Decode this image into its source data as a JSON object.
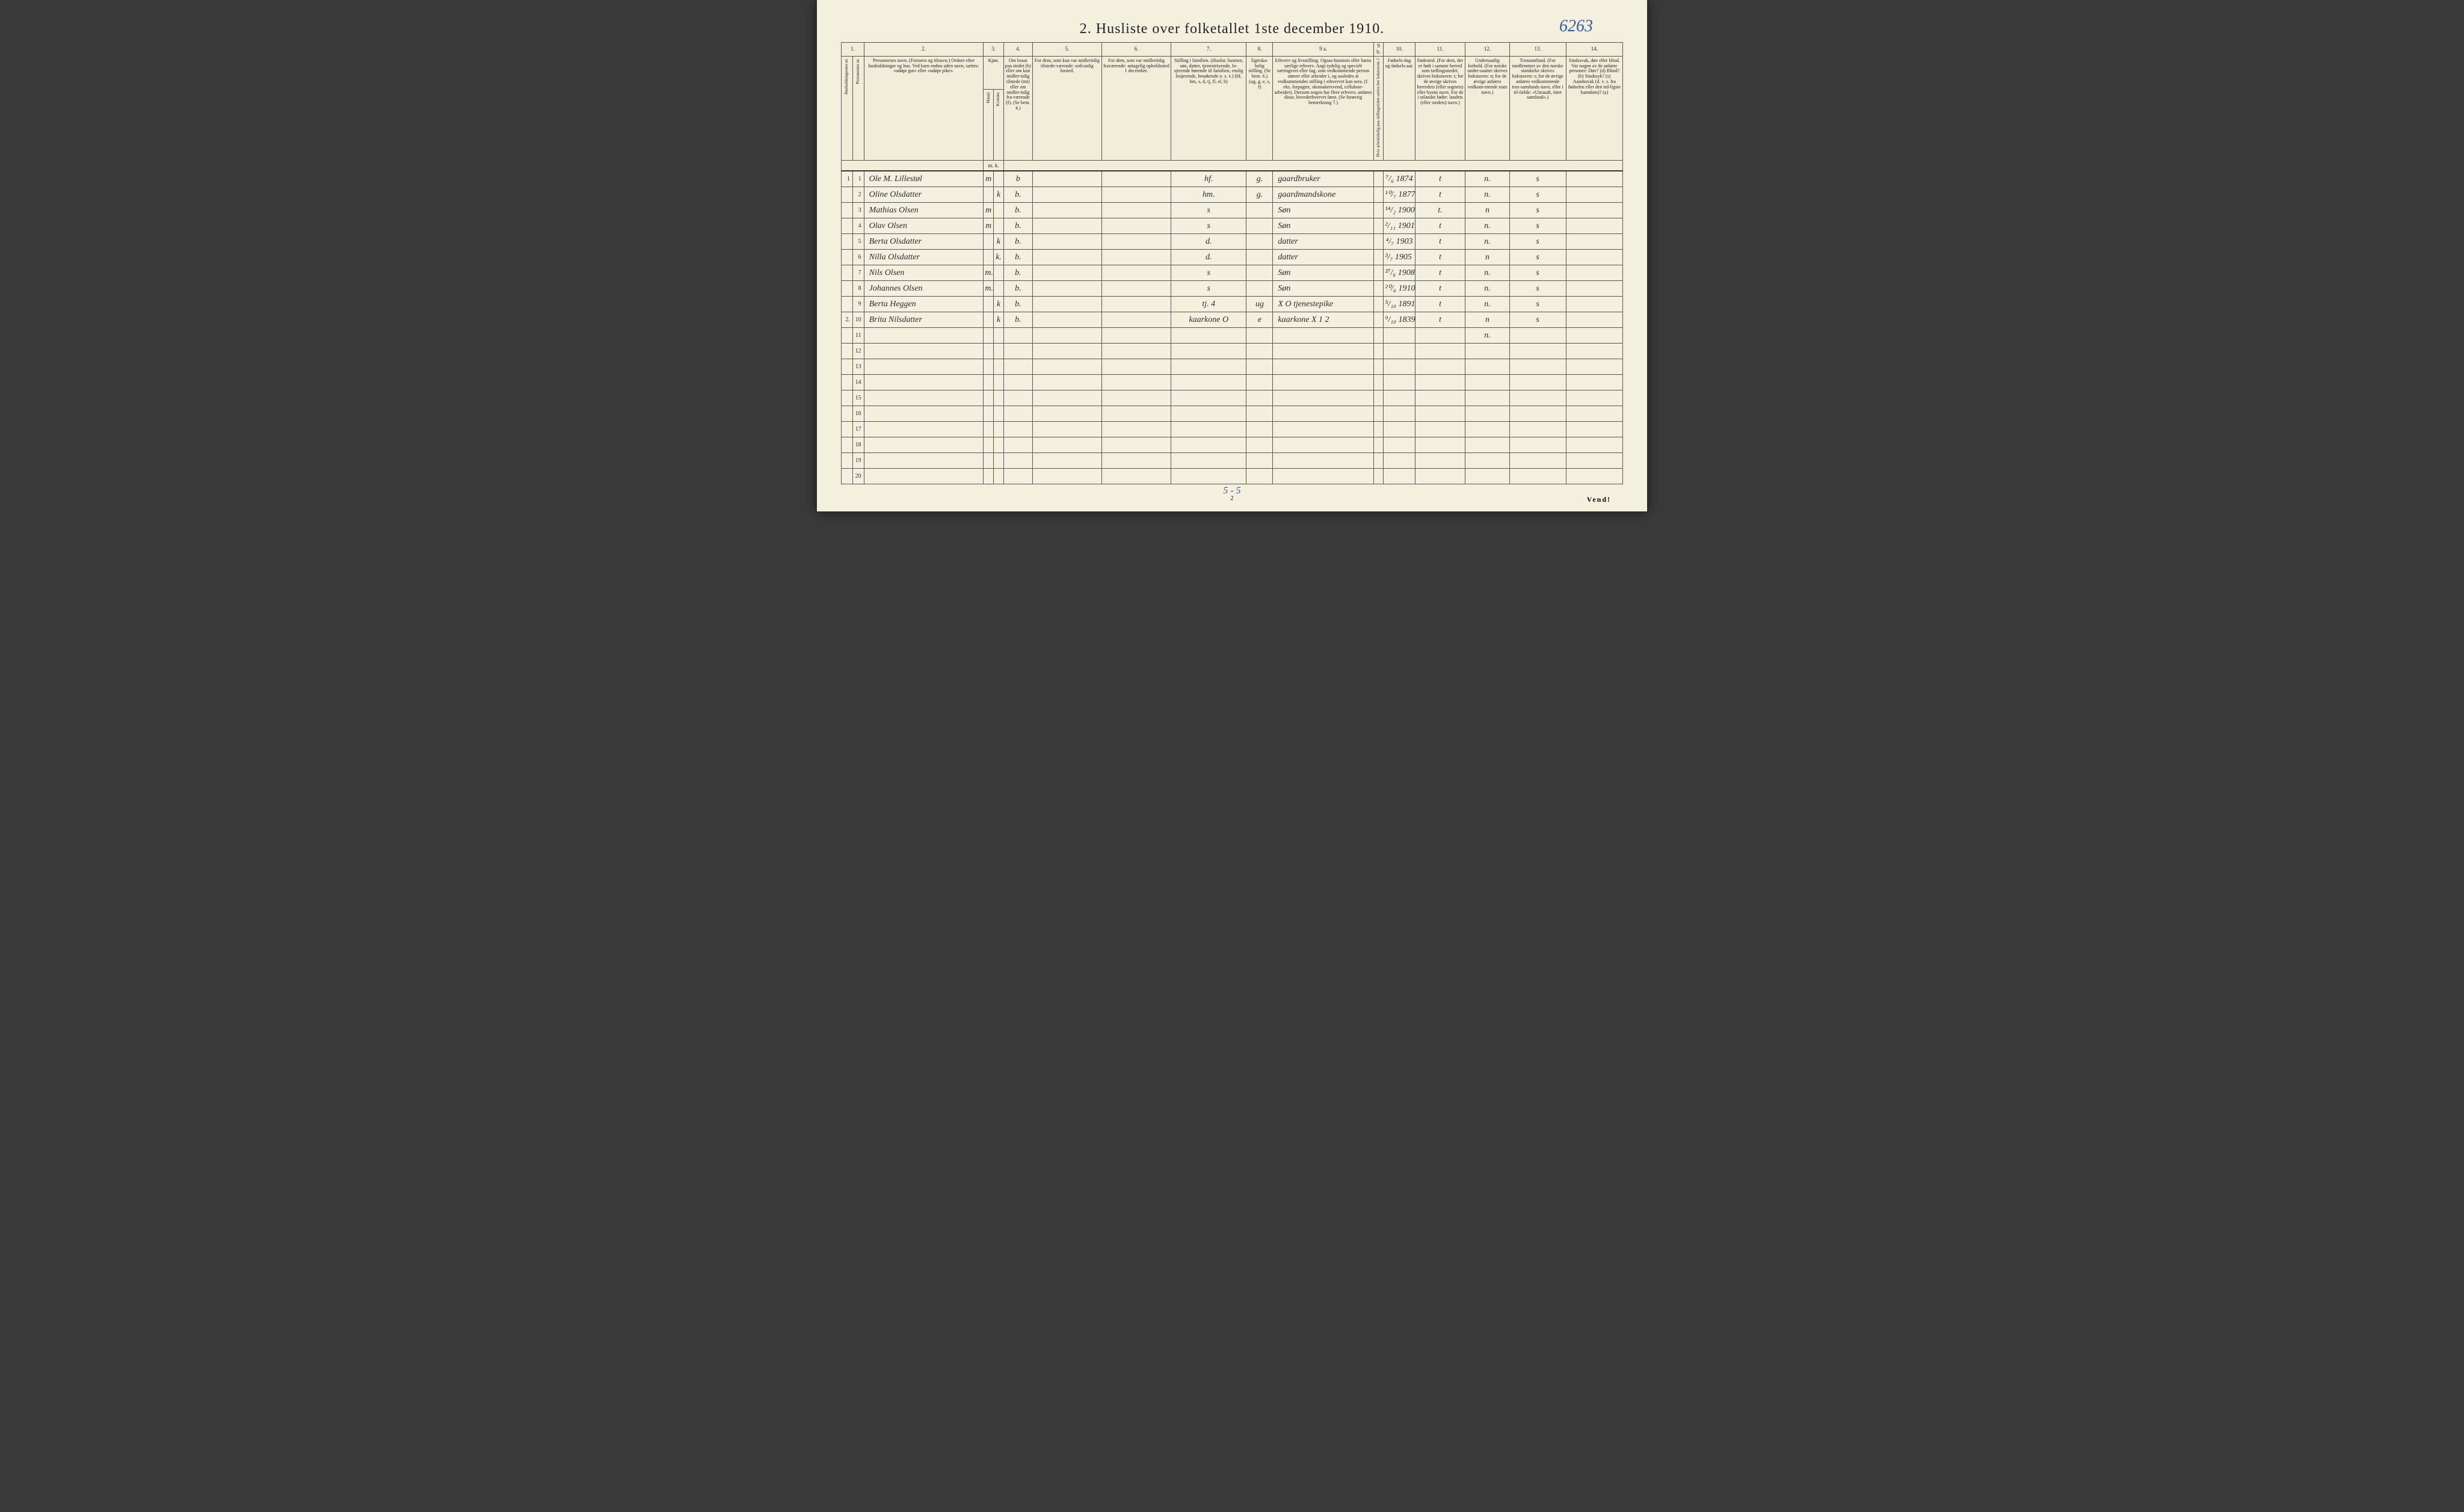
{
  "title": "2.  Husliste over folketallet 1ste december 1910.",
  "ref_number": "6263",
  "page_number": "2",
  "vend": "Vend!",
  "summary": "5 - 5",
  "column_numbers": [
    "1.",
    "",
    "2.",
    "3.",
    "",
    "4.",
    "5.",
    "6.",
    "7.",
    "8.",
    "9 a.",
    "9 b.",
    "10.",
    "11.",
    "12.",
    "13.",
    "14."
  ],
  "headers": {
    "c1a": "Husholdningernes nr.",
    "c1b": "Personernes nr.",
    "c2": "Personernes navn.\n(Fornavn og tilnavn.)\nOrdnet efter husholdninger og hus.\nVed barn endnu uden navn, sættes: «udøpt gut» eller «udøpt pike».",
    "c3": "Kjøn.",
    "c3a": "Mænd.",
    "c3b": "Kvinder.",
    "c4": "Om bosat paa stedet (b) eller om kun midler-tidig tilstede (mt) eller om midler-tidig fra-værende (f).\n(Se bem. 4.)",
    "c5": "For dem, som kun var midlertidig tilstede-værende:\nsedvanlig bosted.",
    "c6": "For dem, som var midlertidig fraværende:\nantagelig opholdssted 1 december.",
    "c7": "Stilling i familien.\n(Husfar, husmor, søn, datter, tjenestetyende, lo-sjerende hørende til familien, enslig losjerende, besøkende o. s. v.)\n(hf, hm, s, d, tj, fl, el, b)",
    "c8": "Egteska-belig stilling.\n(Se bem. 6.)\n(ug, g, e, s, f)",
    "c9a": "Erhverv og livsstilling.\nOgsaa husmors eller barns særlige erhverv. Angi tydelig og specielt næringsvei eller fag, som vedkommende person utøver eller arbeider i, og saaledes at vedkommendes stilling i erhvervet kan sees, (f. eks. forpagter, skomakersvend, cellulose-arbeider). Dersom nogen har flere erhverv, anføres disse, hovederhvervet først.\n(Se forøvrig bemerkning 7.)",
    "c9b": "Hvis arbeidsledig paa tællingstiden sættes her bokstaven: l",
    "c10": "Fødsels-dag og fødsels-aar.",
    "c11": "Fødested.\n(For dem, der er født i samme herred som tællingsstedet, skrives bokstaven: t; for de øvrige skrives herredets (eller sognets) eller byens navn. For de i utlandet fødte: landets (eller stedets) navn.)",
    "c12": "Undersaatlig forhold.\n(For norske under-saatter skrives bokstaven: n; for de øvrige anføres vedkom-mende stats navn.)",
    "c13": "Trossamfund.\n(For medlemmer av den norske statskirke skrives bokstaven: s; for de øvrige anføres vedkommende tros-samfunds navn, eller i til-fælde: «Uttraadt, intet samfund».)",
    "c14": "Sindssvak, døv eller blind.\nVar nogen av de anførte personer:\nDøv? (d)\nBlind? (b)\nSindssyk? (s)\nAandssvak (d. v. s. fra fødselen eller den tid-ligste barndom)? (a)",
    "mk": "m.  k."
  },
  "rows": [
    {
      "hh": "1",
      "num": "1",
      "name": "Ole M. Lillestøl",
      "m": "m",
      "k": "",
      "res": "b",
      "c5": "",
      "c6": "",
      "fam": "hf.",
      "mar": "g.",
      "occ": "gaardbruker",
      "c9b": "",
      "birth": "⁷/₆ 1874",
      "place": "t",
      "nat": "n.",
      "rel": "s",
      "c14": ""
    },
    {
      "hh": "",
      "num": "2",
      "name": "Oline Olsdatter",
      "m": "",
      "k": "k",
      "res": "b.",
      "c5": "",
      "c6": "",
      "fam": "hm.",
      "mar": "g.",
      "occ": "gaardmandskone",
      "c9b": "",
      "birth": "¹⁰/₇ 1877",
      "place": "t",
      "nat": "n.",
      "rel": "s",
      "c14": ""
    },
    {
      "hh": "",
      "num": "3",
      "name": "Mathias Olsen",
      "m": "m",
      "k": "",
      "res": "b.",
      "c5": "",
      "c6": "",
      "fam": "s",
      "mar": "",
      "occ": "Søn",
      "c9b": "",
      "birth": "¹⁴/₂ 1900",
      "place": "t.",
      "nat": "n",
      "rel": "s",
      "c14": ""
    },
    {
      "hh": "",
      "num": "4",
      "name": "Olav Olsen",
      "m": "m",
      "k": "",
      "res": "b.",
      "c5": "",
      "c6": "",
      "fam": "s",
      "mar": "",
      "occ": "Søn",
      "c9b": "",
      "birth": "²/₁₁ 1901",
      "place": "t",
      "nat": "n.",
      "rel": "s",
      "c14": ""
    },
    {
      "hh": "",
      "num": "5",
      "name": "Berta Olsdatter",
      "m": "",
      "k": "k",
      "res": "b.",
      "c5": "",
      "c6": "",
      "fam": "d.",
      "mar": "",
      "occ": "datter",
      "c9b": "",
      "birth": "⁴/₇ 1903",
      "place": "t",
      "nat": "n.",
      "rel": "s",
      "c14": ""
    },
    {
      "hh": "",
      "num": "6",
      "name": "Nilla Olsdatter",
      "m": "",
      "k": "k.",
      "res": "b.",
      "c5": "",
      "c6": "",
      "fam": "d.",
      "mar": "",
      "occ": "datter",
      "c9b": "",
      "birth": "³/₇ 1905 +1",
      "place": "t",
      "nat": "n",
      "rel": "s",
      "c14": ""
    },
    {
      "hh": "",
      "num": "7",
      "name": "Nils Olsen",
      "m": "m.",
      "k": "",
      "res": "b.",
      "c5": "",
      "c6": "",
      "fam": "s",
      "mar": "",
      "occ": "Søn",
      "c9b": "",
      "birth": "²⁷/₆ 1908",
      "place": "t",
      "nat": "n.",
      "rel": "s",
      "c14": ""
    },
    {
      "hh": "",
      "num": "8",
      "name": "Johannes Olsen",
      "m": "m.",
      "k": "",
      "res": "b.",
      "c5": "",
      "c6": "",
      "fam": "s",
      "mar": "",
      "occ": "Søn",
      "c9b": "",
      "birth": "²⁰/₆ 1910",
      "place": "t",
      "nat": "n.",
      "rel": "s",
      "c14": ""
    },
    {
      "hh": "",
      "num": "9",
      "name": "Berta Heggen",
      "m": "",
      "k": "k",
      "res": "b.",
      "c5": "",
      "c6": "",
      "fam": "tj.      4",
      "mar": "ug",
      "occ": "X O  tjenestepike",
      "c9b": "",
      "birth": "⁵/₁₀ 1891",
      "place": "t",
      "nat": "n.",
      "rel": "s",
      "c14": ""
    },
    {
      "hh": "2.",
      "num": "10",
      "name": "Brita Nilsdatter",
      "m": "",
      "k": "k",
      "res": "b.",
      "c5": "",
      "c6": "",
      "fam": "kaarkone  O",
      "mar": "e",
      "occ": "kaarkone  X 1 2",
      "c9b": "",
      "birth": "⁹/₁₀ 1839",
      "place": "t",
      "nat": "n",
      "rel": "s",
      "c14": ""
    },
    {
      "hh": "",
      "num": "11",
      "name": "",
      "m": "",
      "k": "",
      "res": "",
      "c5": "",
      "c6": "",
      "fam": "",
      "mar": "",
      "occ": "",
      "c9b": "",
      "birth": "",
      "place": "",
      "nat": "n.",
      "rel": "",
      "c14": ""
    },
    {
      "hh": "",
      "num": "12",
      "name": "",
      "m": "",
      "k": "",
      "res": "",
      "c5": "",
      "c6": "",
      "fam": "",
      "mar": "",
      "occ": "",
      "c9b": "",
      "birth": "",
      "place": "",
      "nat": "",
      "rel": "",
      "c14": ""
    },
    {
      "hh": "",
      "num": "13",
      "name": "",
      "m": "",
      "k": "",
      "res": "",
      "c5": "",
      "c6": "",
      "fam": "",
      "mar": "",
      "occ": "",
      "c9b": "",
      "birth": "",
      "place": "",
      "nat": "",
      "rel": "",
      "c14": ""
    },
    {
      "hh": "",
      "num": "14",
      "name": "",
      "m": "",
      "k": "",
      "res": "",
      "c5": "",
      "c6": "",
      "fam": "",
      "mar": "",
      "occ": "",
      "c9b": "",
      "birth": "",
      "place": "",
      "nat": "",
      "rel": "",
      "c14": ""
    },
    {
      "hh": "",
      "num": "15",
      "name": "",
      "m": "",
      "k": "",
      "res": "",
      "c5": "",
      "c6": "",
      "fam": "",
      "mar": "",
      "occ": "",
      "c9b": "",
      "birth": "",
      "place": "",
      "nat": "",
      "rel": "",
      "c14": ""
    },
    {
      "hh": "",
      "num": "16",
      "name": "",
      "m": "",
      "k": "",
      "res": "",
      "c5": "",
      "c6": "",
      "fam": "",
      "mar": "",
      "occ": "",
      "c9b": "",
      "birth": "",
      "place": "",
      "nat": "",
      "rel": "",
      "c14": ""
    },
    {
      "hh": "",
      "num": "17",
      "name": "",
      "m": "",
      "k": "",
      "res": "",
      "c5": "",
      "c6": "",
      "fam": "",
      "mar": "",
      "occ": "",
      "c9b": "",
      "birth": "",
      "place": "",
      "nat": "",
      "rel": "",
      "c14": ""
    },
    {
      "hh": "",
      "num": "18",
      "name": "",
      "m": "",
      "k": "",
      "res": "",
      "c5": "",
      "c6": "",
      "fam": "",
      "mar": "",
      "occ": "",
      "c9b": "",
      "birth": "",
      "place": "",
      "nat": "",
      "rel": "",
      "c14": ""
    },
    {
      "hh": "",
      "num": "19",
      "name": "",
      "m": "",
      "k": "",
      "res": "",
      "c5": "",
      "c6": "",
      "fam": "",
      "mar": "",
      "occ": "",
      "c9b": "",
      "birth": "",
      "place": "",
      "nat": "",
      "rel": "",
      "c14": ""
    },
    {
      "hh": "",
      "num": "20",
      "name": "",
      "m": "",
      "k": "",
      "res": "",
      "c5": "",
      "c6": "",
      "fam": "",
      "mar": "",
      "occ": "",
      "c9b": "",
      "birth": "",
      "place": "",
      "nat": "",
      "rel": "",
      "c14": ""
    }
  ]
}
